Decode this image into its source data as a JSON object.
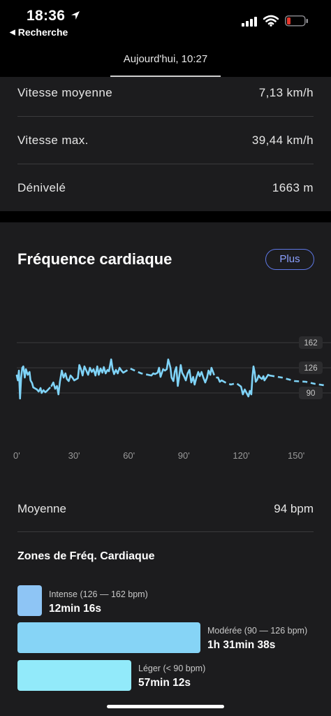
{
  "status_bar": {
    "time": "18:36",
    "back_label": "Recherche",
    "icons": [
      "location-arrow-icon",
      "signal-icon",
      "wifi-icon",
      "battery-low-icon"
    ],
    "battery_color": "#e5372c"
  },
  "header": {
    "tab_label": "Aujourd'hui, 10:27"
  },
  "stats": [
    {
      "label": "Vitesse moyenne",
      "value": "7,13 km/h"
    },
    {
      "label": "Vitesse max.",
      "value": "39,44 km/h"
    },
    {
      "label": "Dénivelé",
      "value": "1663 m"
    }
  ],
  "heart_rate": {
    "title": "Fréquence cardiaque",
    "more_button": "Plus",
    "accent_color": "#5e78e6",
    "average_label": "Moyenne",
    "average_value": "94 bpm",
    "zones_title": "Zones de Fréq. Cardiaque",
    "zones": [
      {
        "name": "Intense (126 — 162 bpm)",
        "duration": "12min 16s",
        "color": "#8ec5f5",
        "share": 0.076
      },
      {
        "name": "Modérée (90 — 126 bpm)",
        "duration": "1h 31min 38s",
        "color": "#86d4f6",
        "share": 0.569
      },
      {
        "name": "Léger (< 90 bpm)",
        "duration": "57min 12s",
        "color": "#92eafa",
        "share": 0.355
      }
    ]
  },
  "chart_data": {
    "type": "line",
    "title": "",
    "xlabel": "",
    "ylabel": "",
    "x_ticks": [
      "0'",
      "30'",
      "60'",
      "90'",
      "120'",
      "150'"
    ],
    "x_tick_values": [
      0,
      30,
      60,
      90,
      120,
      150
    ],
    "y_ticks": [
      "162",
      "126",
      "90"
    ],
    "y_tick_values": [
      162,
      126,
      90
    ],
    "xlim": [
      0,
      170
    ],
    "ylim": [
      72,
      162
    ],
    "line_color": "#7fd3f7",
    "grid": true,
    "series": [
      {
        "name": "",
        "style": "solid",
        "points": [
          [
            0,
            115
          ],
          [
            0.6,
            108
          ],
          [
            1.2,
            122
          ],
          [
            1.8,
            82
          ],
          [
            2.4,
            112
          ],
          [
            3,
            126
          ],
          [
            3.6,
            128
          ],
          [
            4.4,
            112
          ],
          [
            5,
            124
          ],
          [
            6,
            116
          ],
          [
            7,
            120
          ],
          [
            7.5,
            108
          ],
          [
            8.4,
            104
          ],
          [
            9,
            98
          ]
        ]
      },
      {
        "name": "",
        "style": "dashed",
        "points": [
          [
            9,
            98
          ],
          [
            11,
            95
          ]
        ]
      },
      {
        "name": "",
        "style": "solid",
        "points": [
          [
            11,
            95
          ],
          [
            12,
            92
          ],
          [
            13,
            97
          ],
          [
            13.6,
            90
          ],
          [
            14.6,
            94
          ],
          [
            15.6,
            91
          ],
          [
            16.5,
            93
          ]
        ]
      },
      {
        "name": "",
        "style": "dashed",
        "points": [
          [
            16.5,
            93
          ],
          [
            19,
            100
          ]
        ]
      },
      {
        "name": "",
        "style": "solid",
        "points": [
          [
            19,
            100
          ],
          [
            20,
            105
          ],
          [
            21,
            96
          ],
          [
            22,
            100
          ],
          [
            22.8,
            88
          ],
          [
            23.6,
            106
          ],
          [
            24.6,
            122
          ],
          [
            25.6,
            112
          ],
          [
            26.6,
            118
          ],
          [
            27.4,
            110
          ],
          [
            28.4,
            107
          ],
          [
            29.4,
            115
          ],
          [
            30.4,
            112
          ],
          [
            31.4,
            108
          ]
        ]
      },
      {
        "name": "",
        "style": "dashed",
        "points": [
          [
            31.4,
            108
          ],
          [
            33.4,
            111
          ]
        ]
      },
      {
        "name": "",
        "style": "solid",
        "points": [
          [
            33.4,
            111
          ],
          [
            34.2,
            130
          ],
          [
            35.2,
            123
          ],
          [
            36,
            115
          ],
          [
            37,
            128
          ],
          [
            38,
            122
          ],
          [
            39,
            116
          ],
          [
            40,
            126
          ],
          [
            41,
            120
          ],
          [
            42,
            124
          ],
          [
            43,
            115
          ],
          [
            44,
            128
          ],
          [
            44.8,
            116
          ],
          [
            45.8,
            125
          ],
          [
            46.8,
            119
          ],
          [
            47.6,
            127
          ],
          [
            48.6,
            118
          ],
          [
            49.6,
            123
          ],
          [
            50.4,
            121
          ],
          [
            51.6,
            138
          ],
          [
            52.4,
            124
          ],
          [
            53.2,
            117
          ],
          [
            54.2,
            123
          ],
          [
            55.2,
            118
          ],
          [
            56.2,
            126
          ],
          [
            57.2,
            122
          ],
          [
            58.2,
            119
          ]
        ]
      },
      {
        "name": "",
        "style": "dashed",
        "points": [
          [
            58.2,
            119
          ],
          [
            62,
            125
          ],
          [
            68,
            118
          ],
          [
            73.6,
            115
          ]
        ]
      },
      {
        "name": "",
        "style": "solid",
        "points": [
          [
            73.6,
            115
          ],
          [
            74.6,
            118
          ],
          [
            75.6,
            117
          ],
          [
            77,
            119
          ],
          [
            77.8,
            126
          ],
          [
            78.6,
            113
          ],
          [
            80,
            124
          ],
          [
            81,
            122
          ]
        ]
      },
      {
        "name": "",
        "style": "dashed",
        "points": [
          [
            81,
            122
          ],
          [
            82,
            124
          ]
        ]
      },
      {
        "name": "",
        "style": "solid",
        "points": [
          [
            82,
            124
          ],
          [
            82.8,
            138
          ],
          [
            84,
            126
          ],
          [
            84.6,
            112
          ],
          [
            85.6,
            107
          ],
          [
            86.4,
            121
          ],
          [
            87.2,
            127
          ],
          [
            88,
            100
          ],
          [
            88.8,
            114
          ],
          [
            89.6,
            130
          ],
          [
            90.4,
            119
          ],
          [
            91.4,
            114
          ],
          [
            92.4,
            108
          ],
          [
            93.4,
            118
          ],
          [
            94.4,
            123
          ],
          [
            95.4,
            105
          ],
          [
            96.4,
            113
          ],
          [
            97.2,
            102
          ],
          [
            98.2,
            112
          ],
          [
            99.2,
            120
          ],
          [
            100,
            114
          ],
          [
            101,
            120
          ],
          [
            102,
            112
          ],
          [
            103,
            105
          ],
          [
            104,
            112
          ],
          [
            104.8,
            122
          ],
          [
            105.8,
            116
          ],
          [
            106.4,
            126
          ],
          [
            107,
            122
          ]
        ]
      },
      {
        "name": "",
        "style": "dashed",
        "points": [
          [
            107,
            122
          ],
          [
            108.4,
            112
          ],
          [
            110,
            112
          ]
        ]
      },
      {
        "name": "",
        "style": "solid",
        "points": [
          [
            110,
            112
          ],
          [
            111,
            106
          ],
          [
            112,
            108
          ]
        ]
      },
      {
        "name": "",
        "style": "dashed",
        "points": [
          [
            112,
            108
          ],
          [
            114,
            105
          ],
          [
            117,
            102
          ],
          [
            120,
            104
          ],
          [
            122.6,
            99
          ]
        ]
      },
      {
        "name": "",
        "style": "solid",
        "points": [
          [
            122.6,
            99
          ],
          [
            123.6,
            88
          ],
          [
            124.6,
            95
          ],
          [
            125.6,
            90
          ],
          [
            126.6,
            85
          ],
          [
            127.4,
            93
          ],
          [
            128.2,
            88
          ],
          [
            128.8,
            113
          ],
          [
            129.4,
            128
          ],
          [
            130,
            120
          ],
          [
            130.6,
            106
          ],
          [
            131.4,
            109
          ],
          [
            132.2,
            115
          ],
          [
            133,
            112
          ],
          [
            134,
            110
          ],
          [
            134.8,
            114
          ],
          [
            135.4,
            108
          ],
          [
            136.4,
            112
          ],
          [
            137.4,
            116
          ],
          [
            138.2,
            115
          ]
        ]
      },
      {
        "name": "",
        "style": "dashed",
        "points": [
          [
            138.2,
            115
          ],
          [
            145,
            112
          ],
          [
            152,
            107
          ],
          [
            158,
            106
          ],
          [
            163,
            103
          ],
          [
            168,
            101
          ]
        ]
      }
    ]
  }
}
